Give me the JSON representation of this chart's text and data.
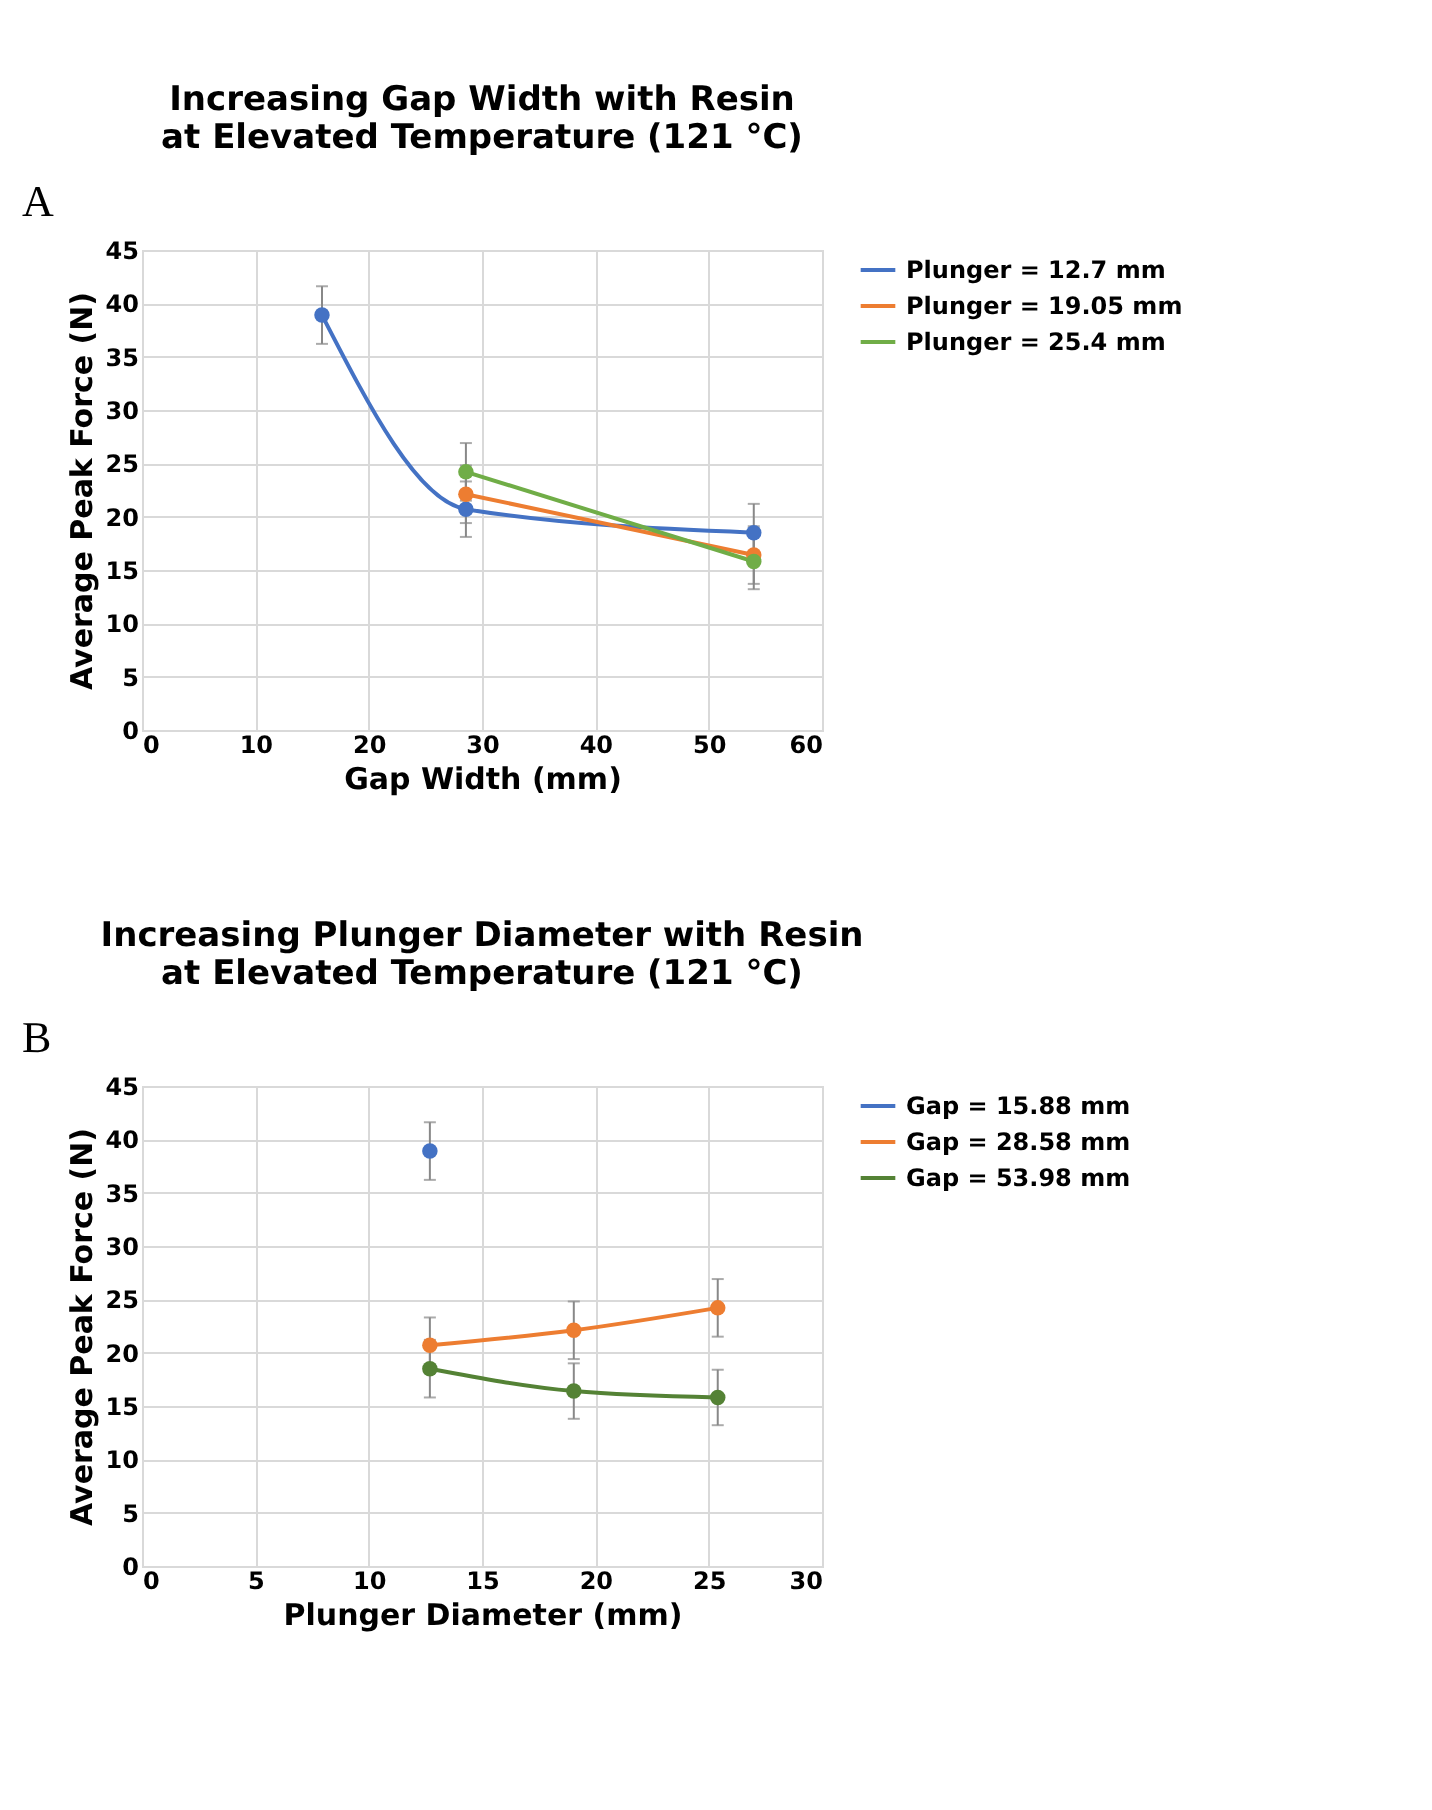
{
  "chart_data": [
    {
      "type": "line",
      "title": "Increasing Gap Width with Resin\nat Elevated Temperature (121 °C)",
      "xlabel": "Gap Width (mm)",
      "ylabel": "Average Peak Force (N)",
      "annotations": [
        "A"
      ],
      "xlim": [
        0,
        60
      ],
      "xticks": [
        0,
        10,
        20,
        30,
        40,
        50,
        60
      ],
      "ylim": [
        0,
        45
      ],
      "yticks": [
        0,
        5,
        10,
        15,
        20,
        25,
        30,
        35,
        40,
        45
      ],
      "grid": true,
      "legend": "right",
      "marker": "circle",
      "line_style": "solid",
      "series": [
        {
          "name": "Plunger = 12.7 mm",
          "color": "#4472c4",
          "x": [
            15.88,
            28.58,
            53.98
          ],
          "values": [
            38.9,
            20.7,
            18.5
          ],
          "errors": [
            2.7,
            2.6,
            2.7
          ]
        },
        {
          "name": "Plunger = 19.05 mm",
          "color": "#ed7d31",
          "x": [
            28.58,
            53.98
          ],
          "values": [
            22.1,
            16.4
          ],
          "errors": [
            2.7,
            2.7
          ]
        },
        {
          "name": "Plunger = 25.4 mm",
          "color": "#70ad47",
          "x": [
            28.58,
            53.98
          ],
          "values": [
            24.2,
            15.8
          ],
          "errors": [
            2.7,
            2.6
          ]
        }
      ]
    },
    {
      "type": "line",
      "title": "Increasing Plunger Diameter with Resin\nat Elevated Temperature (121 °C)",
      "xlabel": "Plunger Diameter (mm)",
      "ylabel": "Average Peak Force (N)",
      "annotations": [
        "B"
      ],
      "xlim": [
        0,
        30
      ],
      "xticks": [
        0,
        5,
        10,
        15,
        20,
        25,
        30
      ],
      "ylim": [
        0,
        45
      ],
      "yticks": [
        0,
        5,
        10,
        15,
        20,
        25,
        30,
        35,
        40,
        45
      ],
      "grid": true,
      "legend": "right",
      "marker": "circle",
      "line_style": "solid",
      "series": [
        {
          "name": "Gap = 15.88 mm",
          "color": "#4472c4",
          "x": [
            12.7
          ],
          "values": [
            38.9
          ],
          "errors": [
            2.7
          ]
        },
        {
          "name": "Gap = 28.58 mm",
          "color": "#ed7d31",
          "x": [
            12.7,
            19.05,
            25.4
          ],
          "values": [
            20.7,
            22.1,
            24.2
          ],
          "errors": [
            2.6,
            2.7,
            2.7
          ]
        },
        {
          "name": "Gap = 53.98 mm",
          "color": "#548235",
          "x": [
            12.7,
            19.05,
            25.4
          ],
          "values": [
            18.5,
            16.4,
            15.8
          ],
          "errors": [
            2.7,
            2.6,
            2.6
          ]
        }
      ]
    }
  ]
}
